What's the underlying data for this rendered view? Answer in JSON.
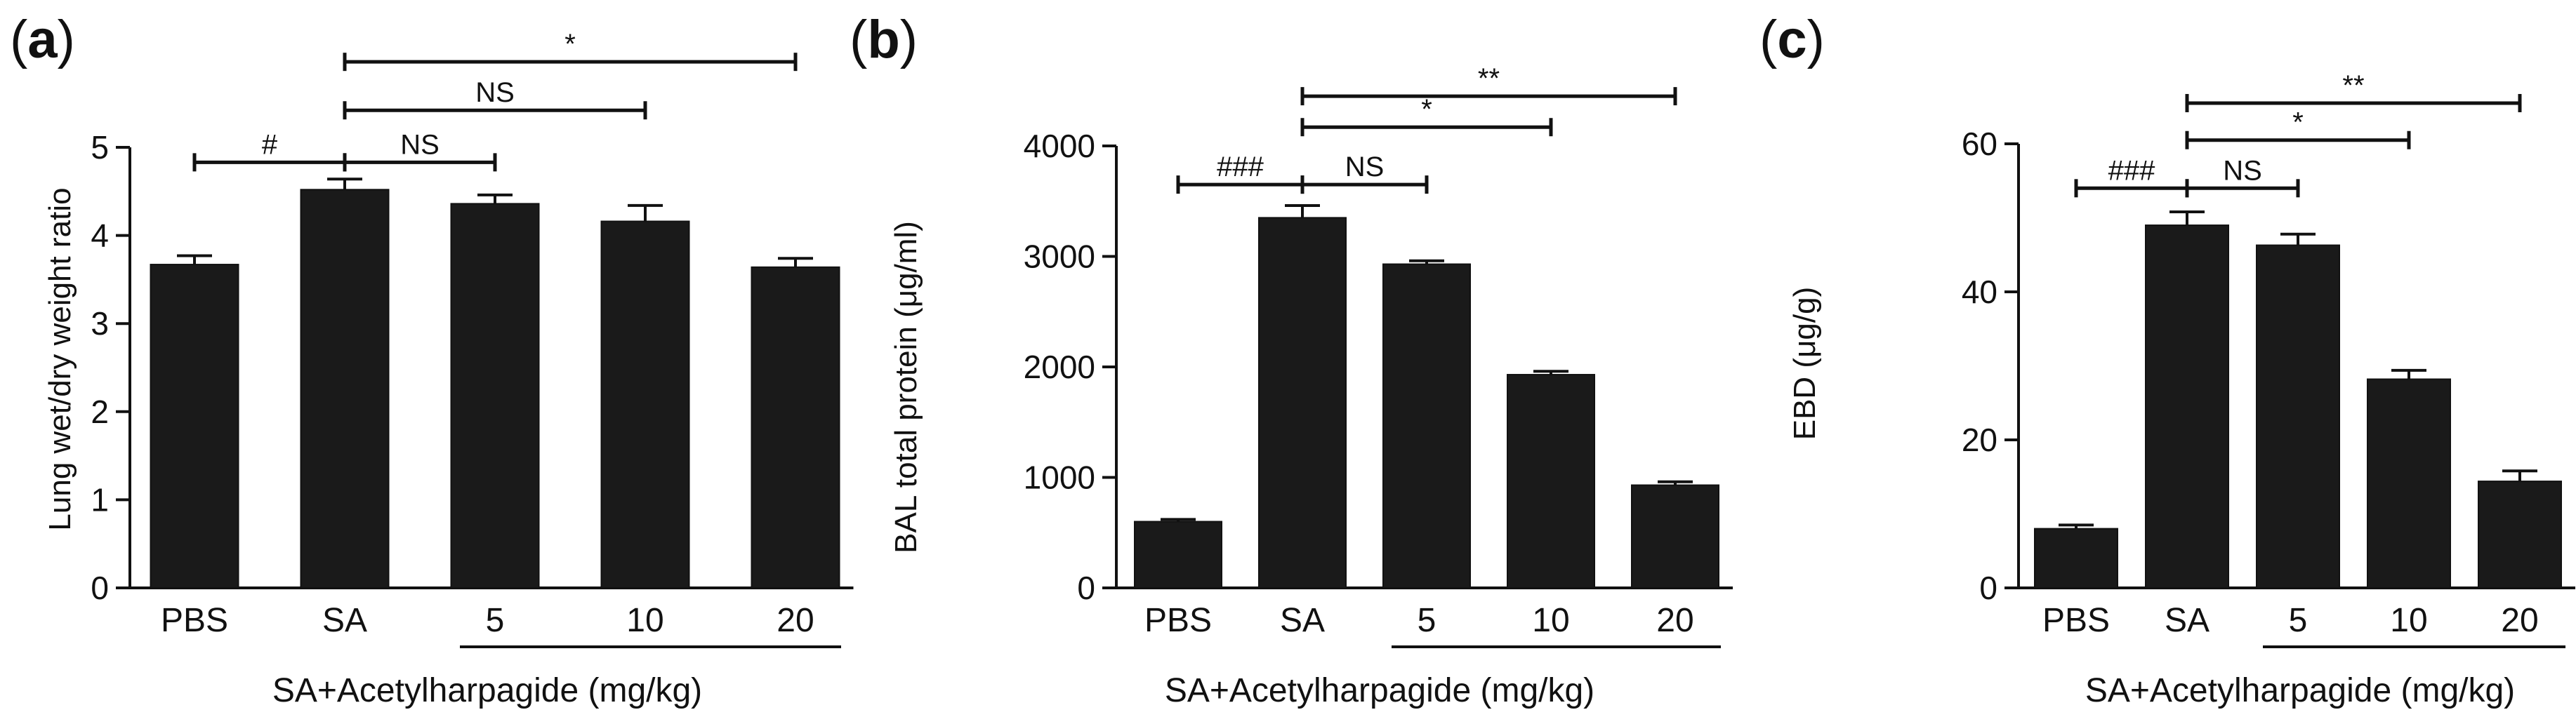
{
  "chart_data": [
    {
      "type": "bar",
      "panel": "a",
      "categories": [
        "PBS",
        "SA",
        "5",
        "10",
        "20"
      ],
      "values": [
        3.67,
        4.52,
        4.36,
        4.16,
        3.64
      ],
      "errors": [
        0.1,
        0.12,
        0.1,
        0.18,
        0.1
      ],
      "ylabel": "Lung wet/dry weight ratio",
      "xlabel": "",
      "group_label": "SA+Acetylharpagide (mg/kg)",
      "group_categories": [
        "5",
        "10",
        "20"
      ],
      "ylim": [
        0,
        5
      ],
      "yticks": [
        0,
        1,
        2,
        3,
        4,
        5
      ],
      "significance": [
        {
          "from": 0,
          "to": 1,
          "label": "#",
          "y": 4.83
        },
        {
          "from": 1,
          "to": 2,
          "label": "NS",
          "y": 4.83
        },
        {
          "from": 1,
          "to": 3,
          "label": "NS",
          "y": 5.42
        },
        {
          "from": 1,
          "to": 4,
          "label": "*",
          "y": 5.97
        }
      ]
    },
    {
      "type": "bar",
      "panel": "b",
      "categories": [
        "PBS",
        "SA",
        "5",
        "10",
        "20"
      ],
      "values": [
        600,
        3350,
        2930,
        1930,
        930
      ],
      "errors": [
        20,
        110,
        30,
        30,
        30
      ],
      "ylabel": "BAL total protein (μg/ml)",
      "xlabel": "",
      "group_label": "SA+Acetylharpagide (mg/kg)",
      "group_categories": [
        "5",
        "10",
        "20"
      ],
      "ylim": [
        0,
        4000
      ],
      "yticks": [
        0,
        1000,
        2000,
        3000,
        4000
      ],
      "significance": [
        {
          "from": 0,
          "to": 1,
          "label": "###",
          "y": 3650
        },
        {
          "from": 1,
          "to": 2,
          "label": "NS",
          "y": 3650
        },
        {
          "from": 1,
          "to": 3,
          "label": "*",
          "y": 4170
        },
        {
          "from": 1,
          "to": 4,
          "label": "**",
          "y": 4450
        }
      ]
    },
    {
      "type": "bar",
      "panel": "c",
      "categories": [
        "PBS",
        "SA",
        "5",
        "10",
        "20"
      ],
      "values": [
        8,
        49,
        46.3,
        28.2,
        14.4
      ],
      "errors": [
        0.5,
        1.8,
        1.5,
        1.2,
        1.4
      ],
      "ylabel": "EBD (μg/g)",
      "xlabel": "",
      "group_label": "SA+Acetylharpagide (mg/kg)",
      "group_categories": [
        "5",
        "10",
        "20"
      ],
      "ylim": [
        0,
        60
      ],
      "yticks": [
        0,
        20,
        40,
        60
      ],
      "significance": [
        {
          "from": 0,
          "to": 1,
          "label": "###",
          "y": 54
        },
        {
          "from": 1,
          "to": 2,
          "label": "NS",
          "y": 54
        },
        {
          "from": 1,
          "to": 3,
          "label": "*",
          "y": 60.5
        },
        {
          "from": 1,
          "to": 4,
          "label": "**",
          "y": 65.5
        }
      ]
    }
  ],
  "panels": [
    {
      "open": "(",
      "letter": "a",
      "close": ")"
    },
    {
      "open": "(",
      "letter": "b",
      "close": ")"
    },
    {
      "open": "(",
      "letter": "c",
      "close": ")"
    }
  ]
}
